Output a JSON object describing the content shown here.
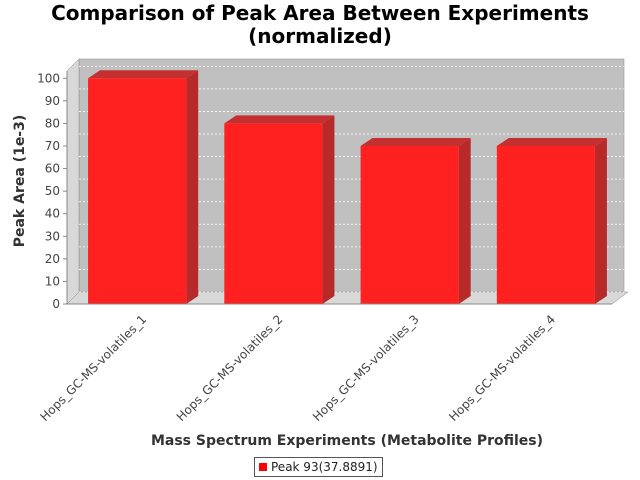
{
  "chart_data": {
    "type": "bar",
    "title_lines": [
      "Comparison of Peak Area Between Experiments",
      "(normalized)"
    ],
    "xlabel": "Mass Spectrum Experiments (Metabolite Profiles)",
    "ylabel": "Peak Area (1e-3)",
    "categories": [
      "Hops_GC-MS-volatiles_1",
      "Hops_GC-MS-volatiles_2",
      "Hops_GC-MS-volatiles_3",
      "Hops_GC-MS-volatiles_4"
    ],
    "series": [
      {
        "name": "Peak 93(37.8891)",
        "values": [
          100,
          80,
          70,
          70
        ],
        "color": "#ff2020"
      }
    ],
    "ylim": [
      0,
      105
    ],
    "yticks": [
      0,
      10,
      20,
      30,
      40,
      50,
      60,
      70,
      80,
      90,
      100
    ],
    "grid": true,
    "legend_position": "bottom-center",
    "plot_background": "#c0c0c0"
  }
}
